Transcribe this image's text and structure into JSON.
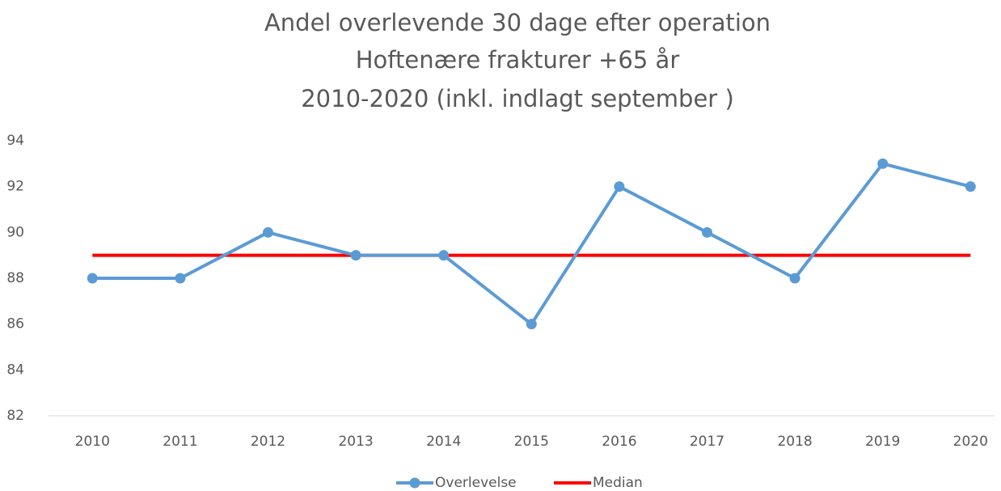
{
  "chart_data": {
    "type": "line",
    "title": [
      "Andel overlevende 30 dage efter operation",
      "Hoftenære frakturer +65 år",
      "2010-2020 (inkl. indlagt september )"
    ],
    "categories": [
      "2010",
      "2011",
      "2012",
      "2013",
      "2014",
      "2015",
      "2016",
      "2017",
      "2018",
      "2019",
      "2020"
    ],
    "series": [
      {
        "name": "Overlevelse",
        "color": "#5b9bd5",
        "markers": true,
        "values": [
          88,
          88,
          90,
          89,
          89,
          86,
          92,
          90,
          88,
          93,
          92
        ]
      },
      {
        "name": "Median",
        "color": "#ff0000",
        "markers": false,
        "values": [
          89,
          89,
          89,
          89,
          89,
          89,
          89,
          89,
          89,
          89,
          89
        ]
      }
    ],
    "ylim": [
      82,
      94
    ],
    "yticks": [
      82,
      84,
      86,
      88,
      90,
      92,
      94
    ],
    "grid": false,
    "legend": "bottom"
  }
}
